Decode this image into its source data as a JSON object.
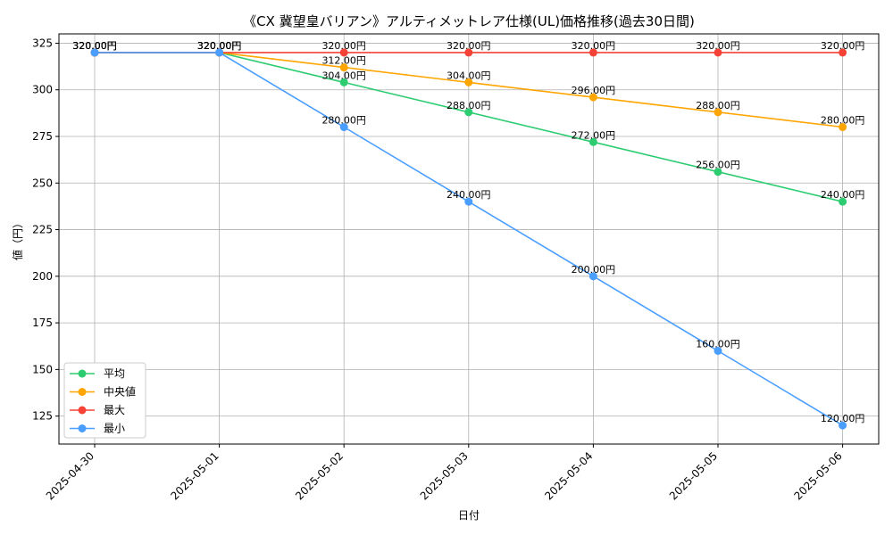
{
  "chart_data": {
    "type": "line",
    "title": "《CX 冀望皇バリアン》アルティメットレア仕様(UL)価格推移(過去30日間)",
    "xlabel": "日付",
    "ylabel": "値（円）",
    "categories": [
      "2025-04-30",
      "2025-05-01",
      "2025-05-02",
      "2025-05-03",
      "2025-05-04",
      "2025-05-05",
      "2025-05-06"
    ],
    "ylim": [
      110,
      330
    ],
    "yticks": [
      125,
      150,
      175,
      200,
      225,
      250,
      275,
      300,
      325
    ],
    "grid": true,
    "legend_position": "lower-left",
    "series": [
      {
        "name": "平均",
        "color": "#2ecc71",
        "values": [
          320,
          320,
          304,
          288,
          272,
          256,
          240
        ],
        "labels": [
          "320.00円",
          "320.00円",
          "304.00円",
          "288.00円",
          "272.00円",
          "256.00円",
          "240.00円"
        ]
      },
      {
        "name": "中央値",
        "color": "#ffa500",
        "values": [
          320,
          320,
          312,
          304,
          296,
          288,
          280
        ],
        "labels": [
          "320.00円",
          "320.00円",
          "312.00円",
          "304.00円",
          "296.00円",
          "288.00円",
          "280.00円"
        ]
      },
      {
        "name": "最大",
        "color": "#f44336",
        "values": [
          320,
          320,
          320,
          320,
          320,
          320,
          320
        ],
        "labels": [
          "320.00円",
          "320.00円",
          "320.00円",
          "320.00円",
          "320.00円",
          "320.00円",
          "320.00円"
        ]
      },
      {
        "name": "最小",
        "color": "#4a9eff",
        "values": [
          320,
          320,
          280,
          240,
          200,
          160,
          120
        ],
        "labels": [
          "320.00円",
          "320.00円",
          "280.00円",
          "240.00円",
          "200.00円",
          "160.00円",
          "120.00円"
        ]
      }
    ]
  }
}
